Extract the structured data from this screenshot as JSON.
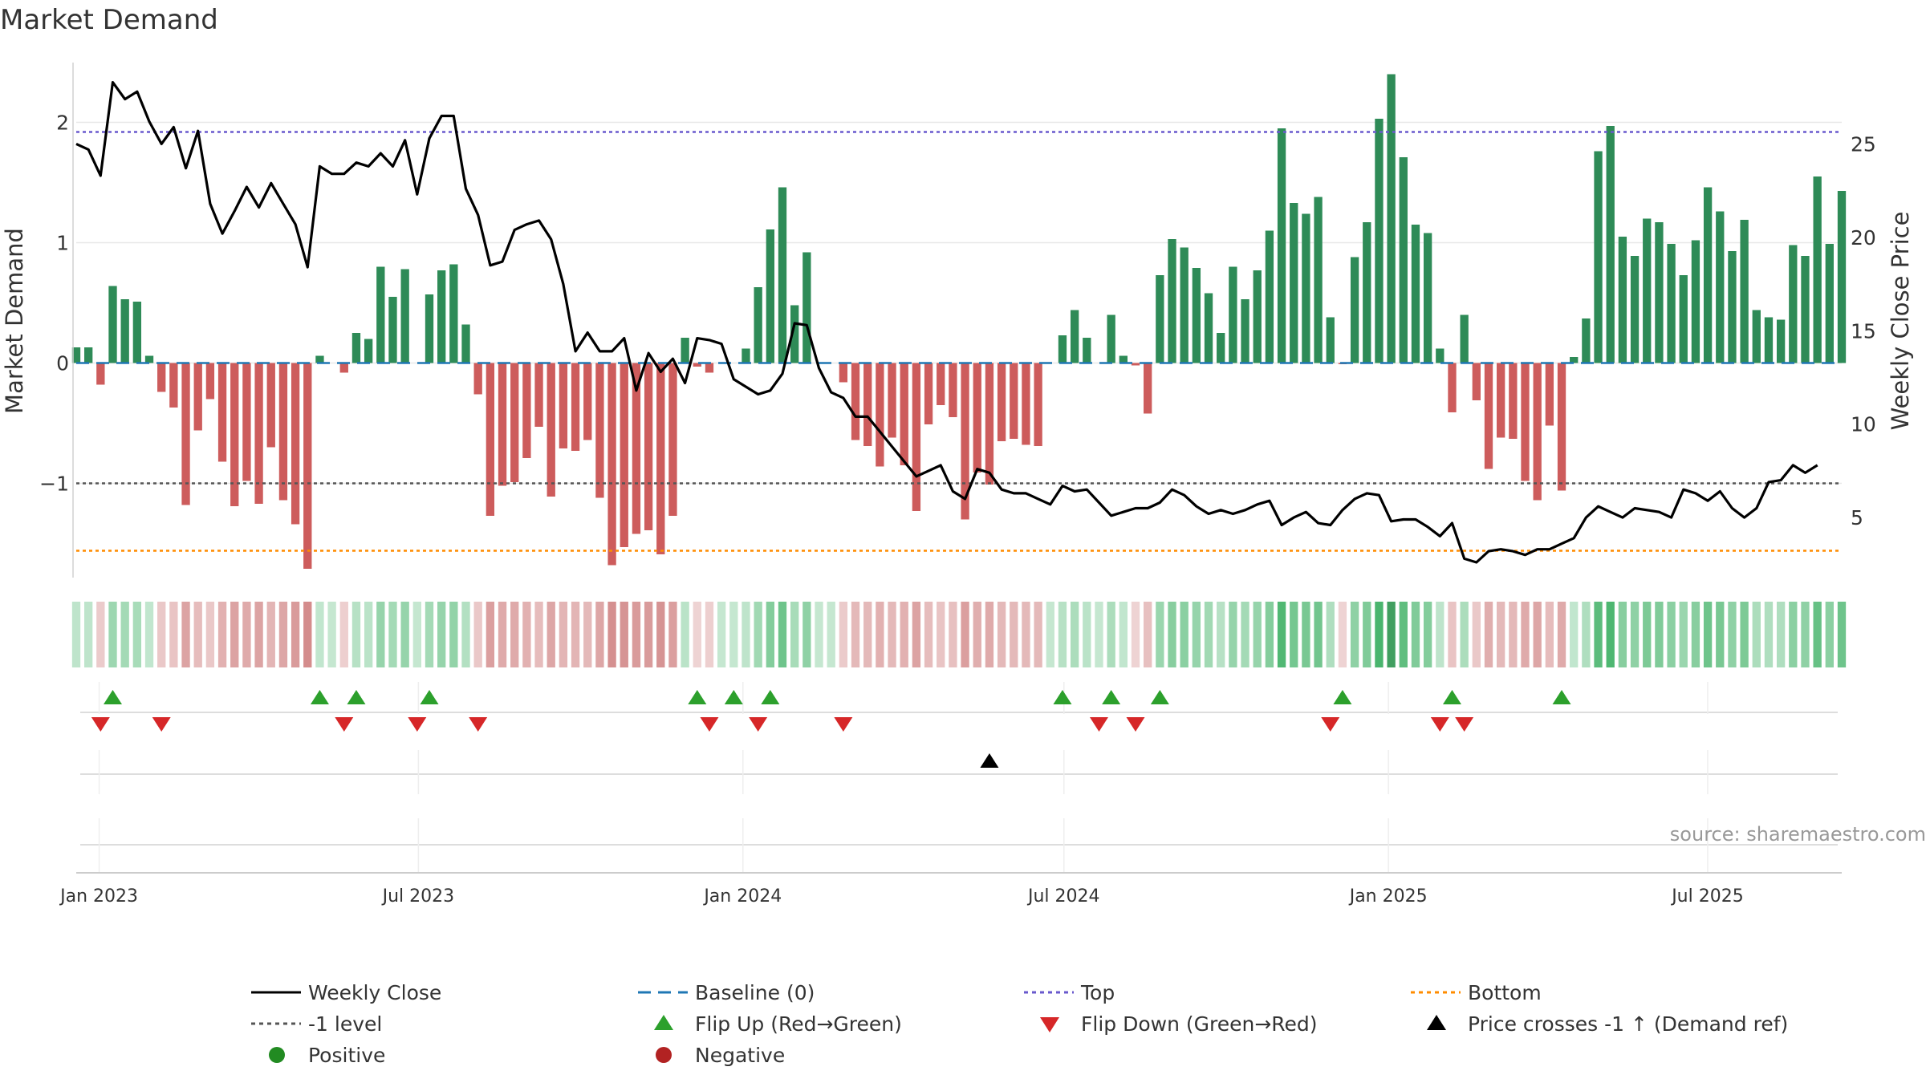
{
  "chart_data": {
    "type": "bar+line",
    "title": "Market Demand",
    "ylabel_left": "Market Demand",
    "ylabel_right": "Weekly Close Price",
    "source": "source: sharemaestro.com",
    "x_start": "2022-12-19",
    "x_end": "2025-09-15",
    "x_ticks": [
      {
        "date": "2023-01-01",
        "label": "Jan 2023"
      },
      {
        "date": "2023-07-01",
        "label": "Jul 2023"
      },
      {
        "date": "2024-01-01",
        "label": "Jan 2024"
      },
      {
        "date": "2024-07-01",
        "label": "Jul 2024"
      },
      {
        "date": "2025-01-01",
        "label": "Jan 2025"
      },
      {
        "date": "2025-07-01",
        "label": "Jul 2025"
      }
    ],
    "y_left": {
      "ylim": [
        -1.75,
        2.55
      ],
      "ticks": [
        {
          "v": 2,
          "label": "2"
        },
        {
          "v": 1,
          "label": "1"
        },
        {
          "v": 0,
          "label": "0"
        },
        {
          "v": -1,
          "label": "−1"
        }
      ]
    },
    "y_right": {
      "ylim": [
        2.0,
        29.7
      ],
      "ticks": [
        {
          "v": 25,
          "label": "25"
        },
        {
          "v": 20,
          "label": "20"
        },
        {
          "v": 15,
          "label": "15"
        },
        {
          "v": 10,
          "label": "10"
        },
        {
          "v": 5,
          "label": "5"
        }
      ]
    },
    "reference_lines": {
      "top": 1.92,
      "baseline": 0,
      "minus_one": -1,
      "bottom": -1.56
    },
    "demand": [
      0.13,
      0.13,
      -0.18,
      0.64,
      0.53,
      0.51,
      0.06,
      -0.24,
      -0.37,
      -1.18,
      -0.56,
      -0.3,
      -0.82,
      -1.19,
      -0.98,
      -1.17,
      -0.7,
      -1.14,
      -1.34,
      -1.71,
      0.06,
      0.0,
      -0.08,
      0.25,
      0.2,
      0.8,
      0.55,
      0.78,
      0.0,
      0.57,
      0.77,
      0.82,
      0.32,
      -0.26,
      -1.27,
      -1.02,
      -0.99,
      -0.79,
      -0.53,
      -1.11,
      -0.71,
      -0.73,
      -0.64,
      -1.12,
      -1.68,
      -1.53,
      -1.42,
      -1.39,
      -1.59,
      -1.27,
      0.21,
      -0.03,
      -0.08,
      0.0,
      0.0,
      0.12,
      0.63,
      1.11,
      1.46,
      0.48,
      0.92,
      0.0,
      0.0,
      -0.16,
      -0.64,
      -0.69,
      -0.86,
      -0.62,
      -0.85,
      -1.23,
      -0.51,
      -0.35,
      -0.45,
      -1.3,
      -0.91,
      -1.01,
      -0.65,
      -0.63,
      -0.68,
      -0.69,
      0.0,
      0.23,
      0.44,
      0.21,
      0.0,
      0.4,
      0.06,
      -0.02,
      -0.42,
      0.73,
      1.03,
      0.96,
      0.79,
      0.58,
      0.25,
      0.8,
      0.53,
      0.77,
      1.1,
      1.95,
      1.33,
      1.24,
      1.38,
      0.38,
      -0.01,
      0.88,
      1.17,
      2.03,
      2.4,
      1.71,
      1.15,
      1.08,
      0.12,
      -0.41,
      0.4,
      -0.31,
      -0.88,
      -0.62,
      -0.63,
      -0.98,
      -1.14,
      -0.52,
      -1.06,
      0.05,
      0.37,
      1.76,
      1.97,
      1.05,
      0.89,
      1.2,
      1.17,
      0.99,
      0.73,
      1.02,
      1.46,
      1.26,
      0.93,
      1.19,
      0.44,
      0.38,
      0.36,
      0.98,
      0.89,
      1.55,
      0.99,
      1.43
    ],
    "weekly_close": [
      25.0,
      24.7,
      23.3,
      28.3,
      27.4,
      27.8,
      26.2,
      25.0,
      25.9,
      23.7,
      25.7,
      21.8,
      20.2,
      21.4,
      22.7,
      21.6,
      22.9,
      21.8,
      20.7,
      18.4,
      23.8,
      23.4,
      23.4,
      24.0,
      23.8,
      24.5,
      23.8,
      25.2,
      22.3,
      25.3,
      26.5,
      26.5,
      22.6,
      21.2,
      18.5,
      18.7,
      20.4,
      20.7,
      20.9,
      19.9,
      17.5,
      13.9,
      14.9,
      13.9,
      13.9,
      14.6,
      11.8,
      13.8,
      12.8,
      13.5,
      12.2,
      14.6,
      14.5,
      14.3,
      12.4,
      12.0,
      11.6,
      11.8,
      12.7,
      15.4,
      15.3,
      13.0,
      11.7,
      11.4,
      10.4,
      10.4,
      9.6,
      8.8,
      8.0,
      7.2,
      7.5,
      7.8,
      6.4,
      6.0,
      7.6,
      7.4,
      6.5,
      6.3,
      6.3,
      6.0,
      5.7,
      6.7,
      6.4,
      6.5,
      5.8,
      5.1,
      5.3,
      5.5,
      5.5,
      5.8,
      6.5,
      6.2,
      5.6,
      5.2,
      5.4,
      5.2,
      5.4,
      5.7,
      5.9,
      4.6,
      5.0,
      5.3,
      4.7,
      4.6,
      5.4,
      6.0,
      6.3,
      6.2,
      4.8,
      4.9,
      4.9,
      4.5,
      4.0,
      4.7,
      2.8,
      2.6,
      3.2,
      3.3,
      3.2,
      3.0,
      3.3,
      3.3,
      3.6,
      3.9,
      5.0,
      5.6,
      5.3,
      5.0,
      5.5,
      5.4,
      5.3,
      5.0,
      6.5,
      6.3,
      5.9,
      6.4,
      5.5,
      5.0,
      5.5,
      6.9,
      7.0,
      7.8,
      7.4,
      7.8
    ],
    "flip_up_weeks": [
      3,
      20,
      23,
      29,
      51,
      54,
      57,
      81,
      85,
      89,
      104,
      113,
      122
    ],
    "flip_down_weeks": [
      2,
      7,
      22,
      28,
      33,
      52,
      56,
      63,
      84,
      87,
      103,
      112,
      114
    ],
    "price_cross_weeks": [
      75
    ],
    "legend": [
      {
        "label": "Weekly Close",
        "kind": "solid-line",
        "color": "#000000"
      },
      {
        "label": "Baseline (0)",
        "kind": "dashed-line",
        "color": "#1f77b4"
      },
      {
        "label": "Top",
        "kind": "dotted-line",
        "color": "#6a5acd"
      },
      {
        "label": "Bottom",
        "kind": "dotted-line",
        "color": "#ff8c00"
      },
      {
        "label": "-1 level",
        "kind": "dotted-line",
        "color": "#555555"
      },
      {
        "label": "Flip Up (Red→Green)",
        "kind": "triangle-up",
        "color": "#2ca02c"
      },
      {
        "label": "Flip Down (Green→Red)",
        "kind": "triangle-down",
        "color": "#d62728"
      },
      {
        "label": "Price crosses -1 ↑ (Demand ref)",
        "kind": "triangle-up",
        "color": "#000000"
      },
      {
        "label": "Positive",
        "kind": "circle",
        "color": "#228b22"
      },
      {
        "label": "Negative",
        "kind": "circle",
        "color": "#b22222"
      }
    ]
  },
  "colors": {
    "positive_bar": "#2e8b57",
    "negative_bar": "#cd5c5c",
    "grid": "#e8e8e8",
    "axis": "#d0d0d0"
  }
}
